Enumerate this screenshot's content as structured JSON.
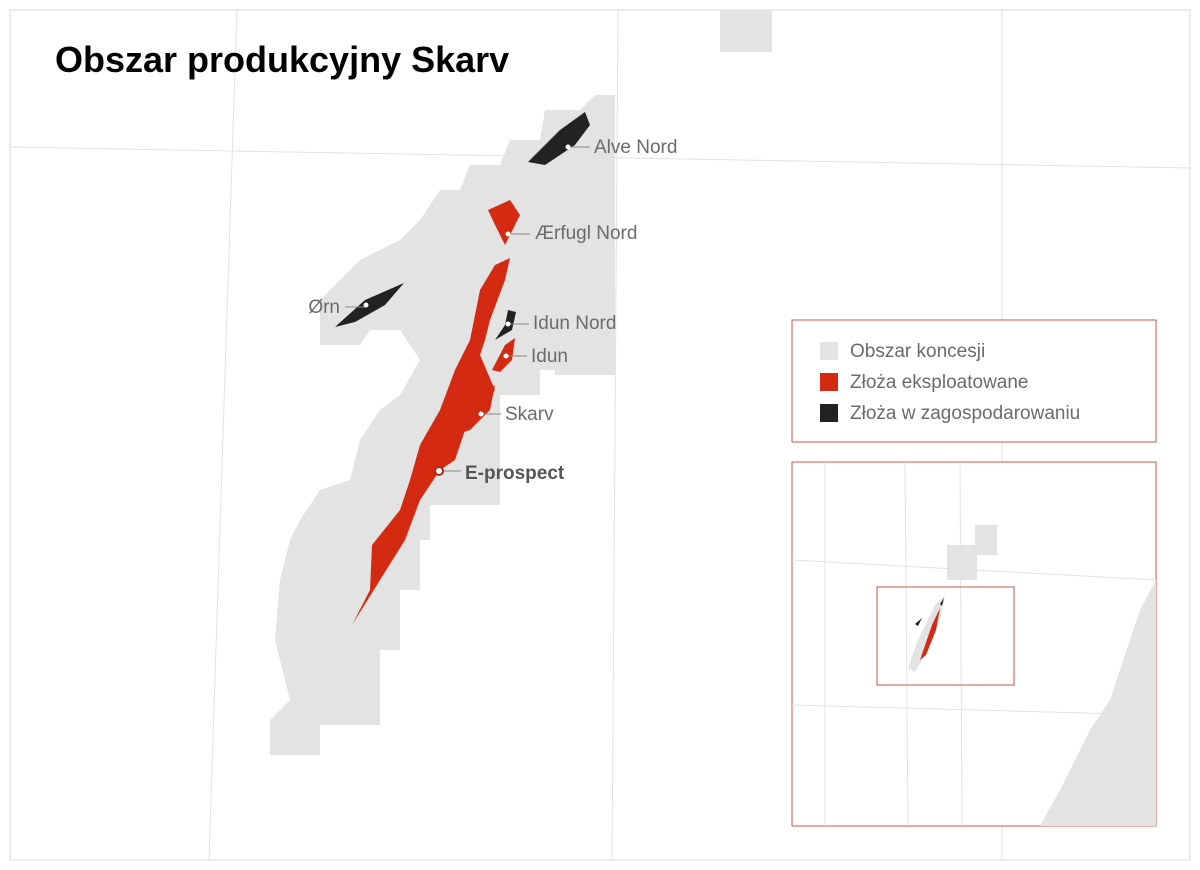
{
  "title": "Obszar produkcyjny Skarv",
  "fields": [
    {
      "label": "Alve Nord"
    },
    {
      "label": "Ærfugl Nord"
    },
    {
      "label": "Ørn"
    },
    {
      "label": "Idun Nord"
    },
    {
      "label": "Idun"
    },
    {
      "label": "Skarv"
    },
    {
      "label": "E-prospect"
    }
  ],
  "legend": [
    {
      "label": "Obszar koncesji",
      "color": "#e3e3e3"
    },
    {
      "label": "Złoża eksploatowane",
      "color": "#d42a12"
    },
    {
      "label": "Złoża w zagospodarowaniu",
      "color": "#222222"
    }
  ]
}
